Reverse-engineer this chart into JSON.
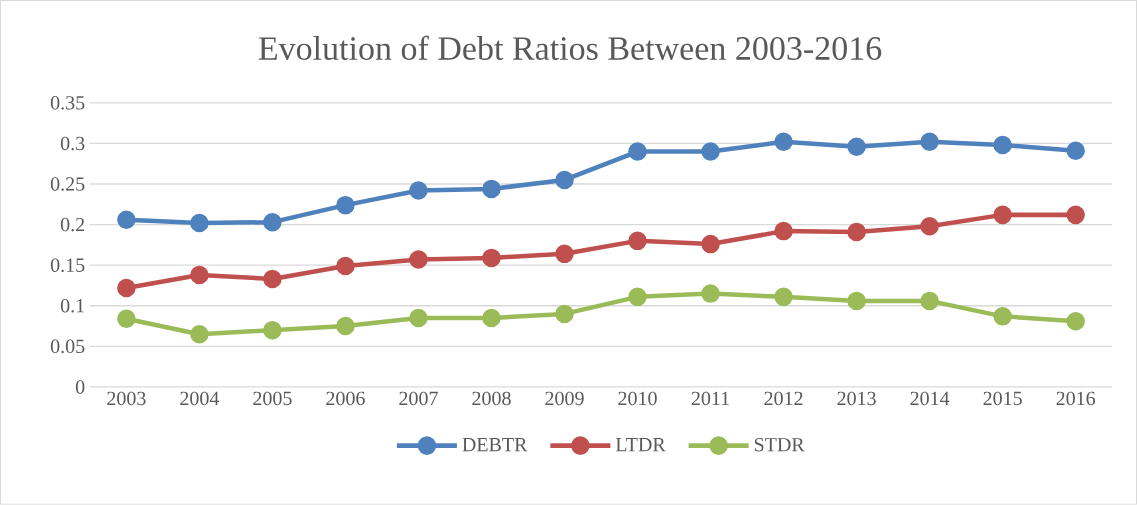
{
  "chart_data": {
    "type": "line",
    "title": "Evolution of Debt Ratios Between 2003-2016",
    "categories": [
      "2003",
      "2004",
      "2005",
      "2006",
      "2007",
      "2008",
      "2009",
      "2010",
      "2011",
      "2012",
      "2013",
      "2014",
      "2015",
      "2016"
    ],
    "series": [
      {
        "name": "DEBTR",
        "color": "#4f81bd",
        "values": [
          0.206,
          0.202,
          0.203,
          0.224,
          0.242,
          0.244,
          0.255,
          0.29,
          0.29,
          0.302,
          0.296,
          0.302,
          0.298,
          0.291
        ]
      },
      {
        "name": "LTDR",
        "color": "#c0504d",
        "values": [
          0.122,
          0.138,
          0.133,
          0.149,
          0.157,
          0.159,
          0.164,
          0.18,
          0.176,
          0.192,
          0.191,
          0.198,
          0.212,
          0.212
        ]
      },
      {
        "name": "STDR",
        "color": "#9bbb59",
        "values": [
          0.084,
          0.065,
          0.07,
          0.075,
          0.085,
          0.085,
          0.09,
          0.111,
          0.115,
          0.111,
          0.106,
          0.106,
          0.087,
          0.081
        ]
      }
    ],
    "ylim": [
      0,
      0.35
    ],
    "yticks": [
      0,
      0.05,
      0.1,
      0.15,
      0.2,
      0.25,
      0.3,
      0.35
    ],
    "grid": "y",
    "legend": "bottom",
    "marker": "circle",
    "line_style": "solid"
  }
}
